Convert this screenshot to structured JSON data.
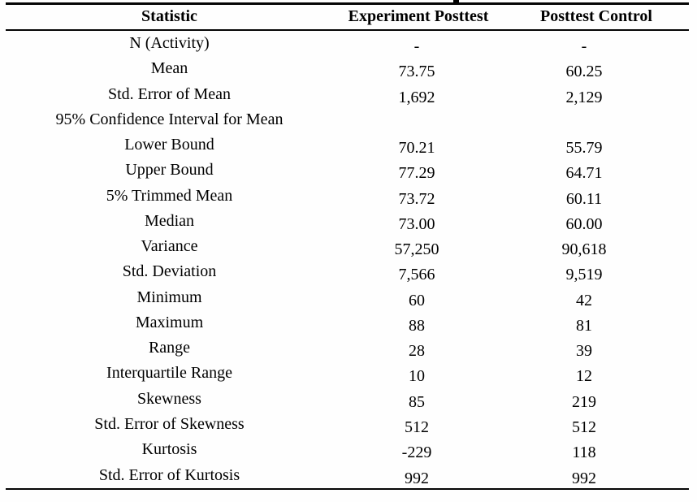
{
  "table": {
    "columns": [
      "Statistic",
      "Experiment Posttest",
      "Posttest Control"
    ],
    "rows": [
      {
        "label": "N (Activity)",
        "experiment": "-",
        "control": "-"
      },
      {
        "label": "Mean",
        "experiment": "73.75",
        "control": "60.25"
      },
      {
        "label": "Std. Error of Mean",
        "experiment": "1,692",
        "control": "2,129"
      },
      {
        "label": "95% Confidence Interval for Mean",
        "experiment": "",
        "control": ""
      },
      {
        "label": "Lower Bound",
        "experiment": "70.21",
        "control": "55.79"
      },
      {
        "label": "Upper Bound",
        "experiment": "77.29",
        "control": "64.71"
      },
      {
        "label": "5% Trimmed Mean",
        "experiment": "73.72",
        "control": "60.11"
      },
      {
        "label": "Median",
        "experiment": "73.00",
        "control": "60.00"
      },
      {
        "label": "Variance",
        "experiment": "57,250",
        "control": "90,618"
      },
      {
        "label": "Std. Deviation",
        "experiment": "7,566",
        "control": "9,519"
      },
      {
        "label": "Minimum",
        "experiment": "60",
        "control": "42"
      },
      {
        "label": "Maximum",
        "experiment": "88",
        "control": "81"
      },
      {
        "label": "Range",
        "experiment": "28",
        "control": "39"
      },
      {
        "label": "Interquartile Range",
        "experiment": "10",
        "control": "12"
      },
      {
        "label": "Skewness",
        "experiment": "85",
        "control": "219"
      },
      {
        "label": "Std. Error of Skewness",
        "experiment": "512",
        "control": "512"
      },
      {
        "label": "Kurtosis",
        "experiment": "-229",
        "control": "118"
      },
      {
        "label": "Std. Error of Kurtosis",
        "experiment": "992",
        "control": "992"
      }
    ],
    "colors": {
      "text": "#000000",
      "background": "#fefefe",
      "rule": "#050505"
    }
  }
}
